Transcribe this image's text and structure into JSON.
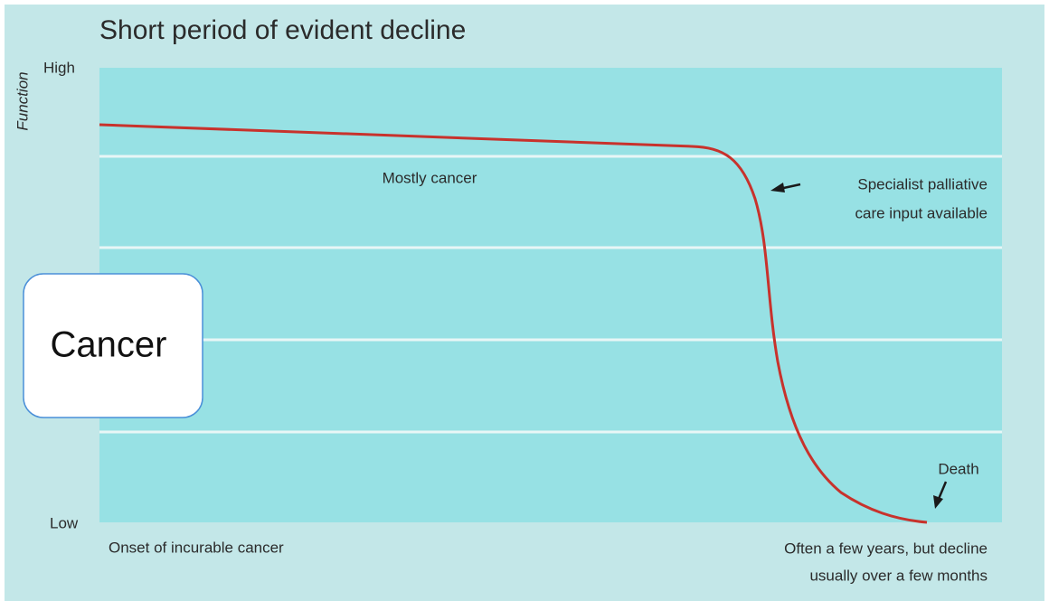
{
  "title": "Short period of evident decline",
  "y_axis": {
    "label": "Function",
    "high": "High",
    "low": "Low"
  },
  "annotations": {
    "group": "Mostly cancer",
    "specialist": [
      "Specialist palliative",
      "care input available"
    ],
    "death": "Death",
    "onset": "Onset of incurable cancer",
    "end": [
      "Often a few years, but decline",
      "usually over a few months"
    ]
  },
  "overlay_label": "Cancer"
}
